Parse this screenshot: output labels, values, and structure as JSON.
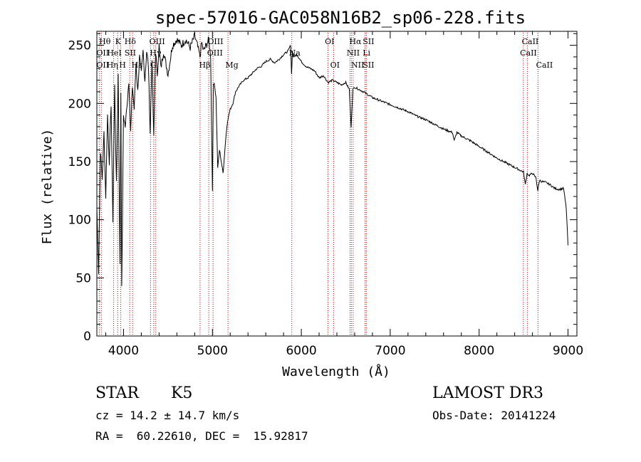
{
  "chart_data": {
    "type": "line",
    "title": "spec-57016-GAC058N16B2_sp06-228.fits",
    "xlabel": "Wavelength (Å)",
    "ylabel": "Flux (relative)",
    "xlim": [
      3700,
      9100
    ],
    "ylim": [
      0,
      262
    ],
    "xticks": [
      4000,
      5000,
      6000,
      7000,
      8000,
      9000
    ],
    "yticks": [
      0,
      50,
      100,
      150,
      200,
      250
    ],
    "xminor": 200,
    "yminor": 10,
    "series": [
      {
        "name": "spectrum",
        "x": [
          3700,
          3720,
          3740,
          3760,
          3780,
          3800,
          3820,
          3840,
          3860,
          3880,
          3900,
          3920,
          3940,
          3960,
          3970,
          3980,
          4000,
          4020,
          4040,
          4060,
          4080,
          4100,
          4120,
          4140,
          4160,
          4180,
          4200,
          4220,
          4240,
          4260,
          4280,
          4300,
          4320,
          4340,
          4360,
          4380,
          4400,
          4420,
          4450,
          4500,
          4550,
          4600,
          4650,
          4700,
          4750,
          4800,
          4830,
          4860,
          4880,
          4900,
          4930,
          4960,
          4980,
          5000,
          5010,
          5020,
          5040,
          5060,
          5080,
          5100,
          5120,
          5150,
          5170,
          5200,
          5230,
          5260,
          5300,
          5350,
          5400,
          5450,
          5500,
          5550,
          5600,
          5650,
          5700,
          5750,
          5800,
          5850,
          5880,
          5890,
          5900,
          5910,
          5950,
          6000,
          6050,
          6100,
          6150,
          6200,
          6250,
          6300,
          6350,
          6400,
          6450,
          6500,
          6540,
          6560,
          6580,
          6600,
          6650,
          6700,
          6800,
          6900,
          7000,
          7100,
          7200,
          7300,
          7400,
          7500,
          7600,
          7700,
          7720,
          7750,
          7800,
          7900,
          8000,
          8100,
          8200,
          8300,
          8400,
          8450,
          8500,
          8520,
          8540,
          8560,
          8600,
          8640,
          8660,
          8680,
          8700,
          8750,
          8800,
          8850,
          8900,
          8950,
          8980,
          9000
        ],
        "values": [
          110,
          55,
          160,
          135,
          175,
          120,
          190,
          150,
          200,
          100,
          215,
          130,
          225,
          60,
          210,
          40,
          190,
          180,
          200,
          220,
          175,
          215,
          195,
          235,
          210,
          240,
          225,
          245,
          220,
          245,
          232,
          175,
          240,
          170,
          245,
          225,
          250,
          230,
          245,
          225,
          250,
          255,
          250,
          255,
          248,
          258,
          250,
          240,
          252,
          245,
          250,
          255,
          240,
          125,
          215,
          218,
          205,
          145,
          160,
          150,
          140,
          170,
          185,
          195,
          200,
          210,
          215,
          220,
          222,
          226,
          230,
          232,
          236,
          238,
          235,
          238,
          242,
          245,
          250,
          225,
          245,
          240,
          242,
          236,
          232,
          230,
          228,
          222,
          224,
          218,
          220,
          218,
          216,
          218,
          212,
          180,
          212,
          214,
          212,
          210,
          205,
          202,
          199,
          196,
          193,
          189,
          186,
          182,
          178,
          175,
          168,
          175,
          172,
          168,
          163,
          158,
          153,
          149,
          145,
          143,
          141,
          130,
          140,
          138,
          140,
          136,
          125,
          134,
          133,
          132,
          130,
          127,
          126,
          127,
          110,
          78
        ]
      }
    ],
    "lines": [
      {
        "name": "Hδ-K",
        "wave": 3727,
        "labels": [
          "Hθ",
          "OII",
          "OII"
        ]
      },
      {
        "name": "Hη",
        "wave": 3750,
        "labels": []
      },
      {
        "name": "HeI",
        "wave": 3889,
        "labels": [
          "K",
          "HeI",
          "Hη"
        ]
      },
      {
        "name": "K",
        "wave": 3934,
        "labels": []
      },
      {
        "name": "H",
        "wave": 3969,
        "labels": [
          "H"
        ]
      },
      {
        "name": "SII",
        "wave": 4070,
        "labels": [
          "Hδ",
          "SII"
        ]
      },
      {
        "name": "Hδ",
        "wave": 4102,
        "labels": [
          "Hε"
        ]
      },
      {
        "name": "G",
        "wave": 4304,
        "labels": [
          "OIII",
          "Hγ",
          "G"
        ]
      },
      {
        "name": "Hγ",
        "wave": 4340,
        "labels": []
      },
      {
        "name": "OIII",
        "wave": 4363,
        "labels": []
      },
      {
        "name": "Hβ",
        "wave": 4861,
        "labels": [
          "Hβ"
        ]
      },
      {
        "name": "OIII4959",
        "wave": 4959,
        "labels": [
          "OIII",
          "OIII"
        ]
      },
      {
        "name": "OIII5007",
        "wave": 5007,
        "labels": []
      },
      {
        "name": "Mg",
        "wave": 5175,
        "labels": [
          "Mg"
        ]
      },
      {
        "name": "Na",
        "wave": 5893,
        "labels": [
          "Na"
        ]
      },
      {
        "name": "OI",
        "wave": 6300,
        "labels": [
          "OI"
        ]
      },
      {
        "name": "OI6363",
        "wave": 6363,
        "labels": [
          "OI"
        ]
      },
      {
        "name": "NII",
        "wave": 6548,
        "labels": [
          "NII",
          "NII"
        ]
      },
      {
        "name": "Hα",
        "wave": 6563,
        "labels": [
          "Hα"
        ]
      },
      {
        "name": "NII6583",
        "wave": 6583,
        "labels": []
      },
      {
        "name": "SII6716",
        "wave": 6716,
        "labels": [
          "SII",
          "Li",
          "SII"
        ]
      },
      {
        "name": "SII6731",
        "wave": 6731,
        "labels": []
      },
      {
        "name": "CaII8498",
        "wave": 8498,
        "labels": [
          "CaII"
        ]
      },
      {
        "name": "CaII8542",
        "wave": 8542,
        "labels": [
          "CaII"
        ]
      },
      {
        "name": "CaII8662",
        "wave": 8662,
        "labels": [
          "CaII"
        ]
      }
    ],
    "line_label_text": {
      "row1": [
        "Hθ",
        "K",
        "Hδ",
        "OIII",
        "OIII",
        "OI",
        "Hα",
        "SII",
        "CaII"
      ],
      "row2": [
        "OII",
        "HeI",
        "SII",
        "Hγ",
        "OIII",
        "Na",
        "NII",
        "Li",
        "CaII"
      ],
      "row3": [
        "OII",
        "Hη",
        "H",
        "Hε",
        "G",
        "Hβ",
        "Mg",
        "OI",
        "NII",
        "SII",
        "CaII"
      ]
    }
  },
  "info": {
    "class_label": "STAR",
    "subclass": "K5",
    "survey": "LAMOST DR3",
    "redshift": "cz = 14.2 ± 14.7 km/s",
    "obs_date": "Obs-Date: 20141224",
    "coords": "RA =  60.22610, DEC =  15.92817"
  }
}
